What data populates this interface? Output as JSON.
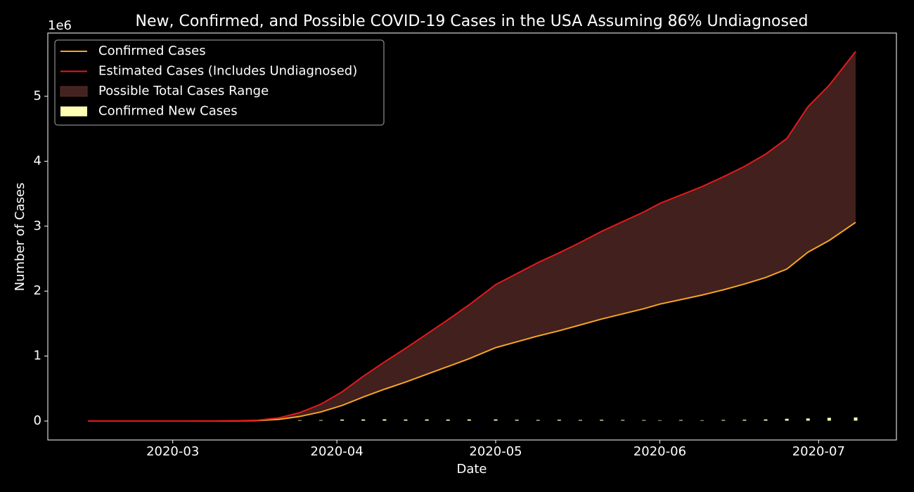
{
  "chart_data": {
    "type": "line",
    "title": "New, Confirmed, and Possible COVID-19 Cases in the USA Assuming 86% Undiagnosed",
    "x_label": "Date",
    "y_label": "Number of Cases",
    "y_offset_label": "1e6",
    "x": [
      18306,
      18314,
      18322,
      18330,
      18334,
      18338,
      18342,
      18346,
      18350,
      18354,
      18358,
      18362,
      18366,
      18370,
      18374,
      18378,
      18383,
      18387,
      18391,
      18395,
      18399,
      18403,
      18407,
      18411,
      18414,
      18418,
      18422,
      18426,
      18430,
      18434,
      18438,
      18442,
      18446,
      18451
    ],
    "series": [
      {
        "name": "Confirmed Cases",
        "color": "#f5a623",
        "values": [
          0,
          0,
          0,
          500,
          2000,
          7000,
          25000,
          70000,
          140000,
          240000,
          370000,
          490000,
          600000,
          720000,
          840000,
          960000,
          1130000,
          1220000,
          1310000,
          1390000,
          1480000,
          1570000,
          1650000,
          1730000,
          1800000,
          1870000,
          1940000,
          2020000,
          2110000,
          2210000,
          2340000,
          2600000,
          2780000,
          3060000
        ]
      },
      {
        "name": "Estimated Cases (Includes Undiagnosed)",
        "color": "#e31a1c",
        "values": [
          0,
          0,
          0,
          900,
          3700,
          13000,
          47000,
          130000,
          260000,
          450000,
          690000,
          910000,
          1120000,
          1340000,
          1560000,
          1790000,
          2100000,
          2270000,
          2440000,
          2590000,
          2750000,
          2920000,
          3070000,
          3220000,
          3350000,
          3480000,
          3610000,
          3760000,
          3920000,
          4110000,
          4350000,
          4840000,
          5170000,
          5690000
        ]
      }
    ],
    "range": {
      "name": "Possible Total Cases Range",
      "color": "#44221f"
    },
    "bars": {
      "name": "Confirmed New Cases",
      "color": "#ffffb3",
      "values": [
        0,
        0,
        0,
        0,
        0,
        0,
        10000,
        19000,
        20000,
        28000,
        30000,
        32000,
        28000,
        30000,
        28000,
        30000,
        30000,
        25000,
        22000,
        25000,
        22000,
        24000,
        22000,
        20000,
        18000,
        21000,
        18000,
        22000,
        25000,
        30000,
        40000,
        45000,
        55000,
        60000
      ]
    },
    "xlim": [
      18298.4,
      18458.7
    ],
    "xticks": [
      {
        "value": 18322,
        "label": "2020-03"
      },
      {
        "value": 18353,
        "label": "2020-04"
      },
      {
        "value": 18383,
        "label": "2020-05"
      },
      {
        "value": 18414,
        "label": "2020-06"
      },
      {
        "value": 18444,
        "label": "2020-07"
      }
    ],
    "ylim": [
      -292000,
      5974000
    ],
    "yticks": [
      0,
      {
        "value": 1000000,
        "label": "1"
      },
      {
        "value": 2000000,
        "label": "2"
      },
      {
        "value": 3000000,
        "label": "3"
      },
      {
        "value": 4000000,
        "label": "4"
      },
      {
        "value": 5000000,
        "label": "5"
      }
    ],
    "legend": "upper left"
  }
}
